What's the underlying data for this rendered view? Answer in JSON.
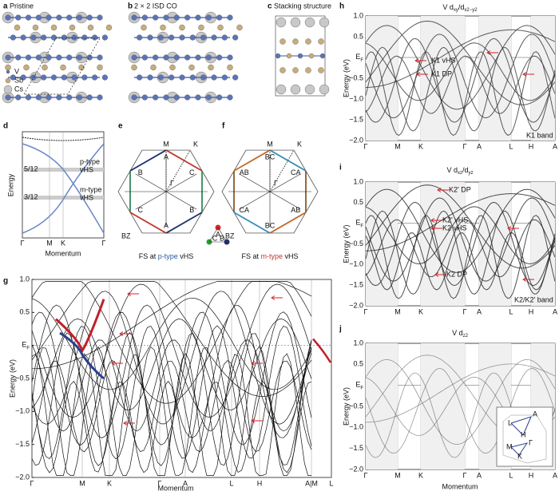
{
  "panels": {
    "a": {
      "label": "a",
      "title": "Pristine",
      "legend": [
        "V",
        "Sb",
        "Cs"
      ]
    },
    "b": {
      "label": "b",
      "title": "2 × 2 ISD CO"
    },
    "c": {
      "label": "c",
      "title": "Stacking structure"
    },
    "d": {
      "label": "d",
      "y_label": "Energy",
      "fillings": [
        "5/12",
        "3/12"
      ],
      "vhs": [
        [
          "p-type",
          "vHS"
        ],
        [
          "m-type",
          "vHS"
        ]
      ],
      "x_ticks": [
        "Γ",
        "M",
        "K",
        "Γ"
      ],
      "x_label": "Momentum"
    },
    "e": {
      "label": "e",
      "points": [
        "M",
        "K",
        "Γ",
        "BZ"
      ],
      "patches": [
        "A",
        "C",
        "B",
        "A",
        "C",
        "B"
      ],
      "caption": [
        "FS at ",
        "p-type",
        " vHS"
      ],
      "legend": [
        "A",
        "C",
        "B"
      ]
    },
    "f": {
      "label": "f",
      "points": [
        "M",
        "K",
        "Γ",
        "BZ"
      ],
      "patches": [
        "BC",
        "CA",
        "AB",
        "BC",
        "CA",
        "AB"
      ],
      "caption": [
        "FS at ",
        "m-type",
        " vHS"
      ]
    },
    "g": {
      "label": "g",
      "x_ticks": [
        "Γ",
        "M",
        "K",
        "Γ",
        "A",
        "L",
        "H",
        "A|M",
        "L"
      ],
      "x_label": "Momentum"
    },
    "h": {
      "label": "h",
      "title": [
        {
          "text": "V d"
        },
        {
          "sub": "xy"
        },
        {
          "text": "/d"
        },
        {
          "sub": "x2−y2"
        }
      ],
      "x_ticks": [
        "Γ",
        "M",
        "K",
        "Γ",
        "A",
        "L",
        "H",
        "A"
      ],
      "annotations": [
        "K1 vHS",
        "K1 DP"
      ],
      "band": "K1 band"
    },
    "i": {
      "label": "i",
      "title": [
        {
          "text": "V d"
        },
        {
          "sub": "xz"
        },
        {
          "text": "/d"
        },
        {
          "sub": "yz"
        }
      ],
      "x_ticks": [
        "Γ",
        "M",
        "K",
        "Γ",
        "A",
        "L",
        "H",
        "A"
      ],
      "annotations": [
        "K2' DP",
        "K2' vHS",
        "K2 vHS",
        "K2 DP"
      ],
      "band": "K2/K2' band"
    },
    "j": {
      "label": "j",
      "title": [
        {
          "text": "V d"
        },
        {
          "sub": "z2"
        }
      ],
      "x_ticks": [
        "Γ",
        "M",
        "K",
        "Γ",
        "A",
        "L",
        "H",
        "A"
      ],
      "x_label": "Momentum",
      "inset": [
        "L",
        "A",
        "H",
        "M",
        "Γ",
        "K"
      ]
    }
  },
  "energy_label": "Energy (eV)",
  "energy_ticks": [
    "1.0",
    "0.5",
    {
      "main": "E",
      "sub": "F"
    },
    "−0.5",
    "−1.0",
    "−1.5",
    "−2.0"
  ]
}
